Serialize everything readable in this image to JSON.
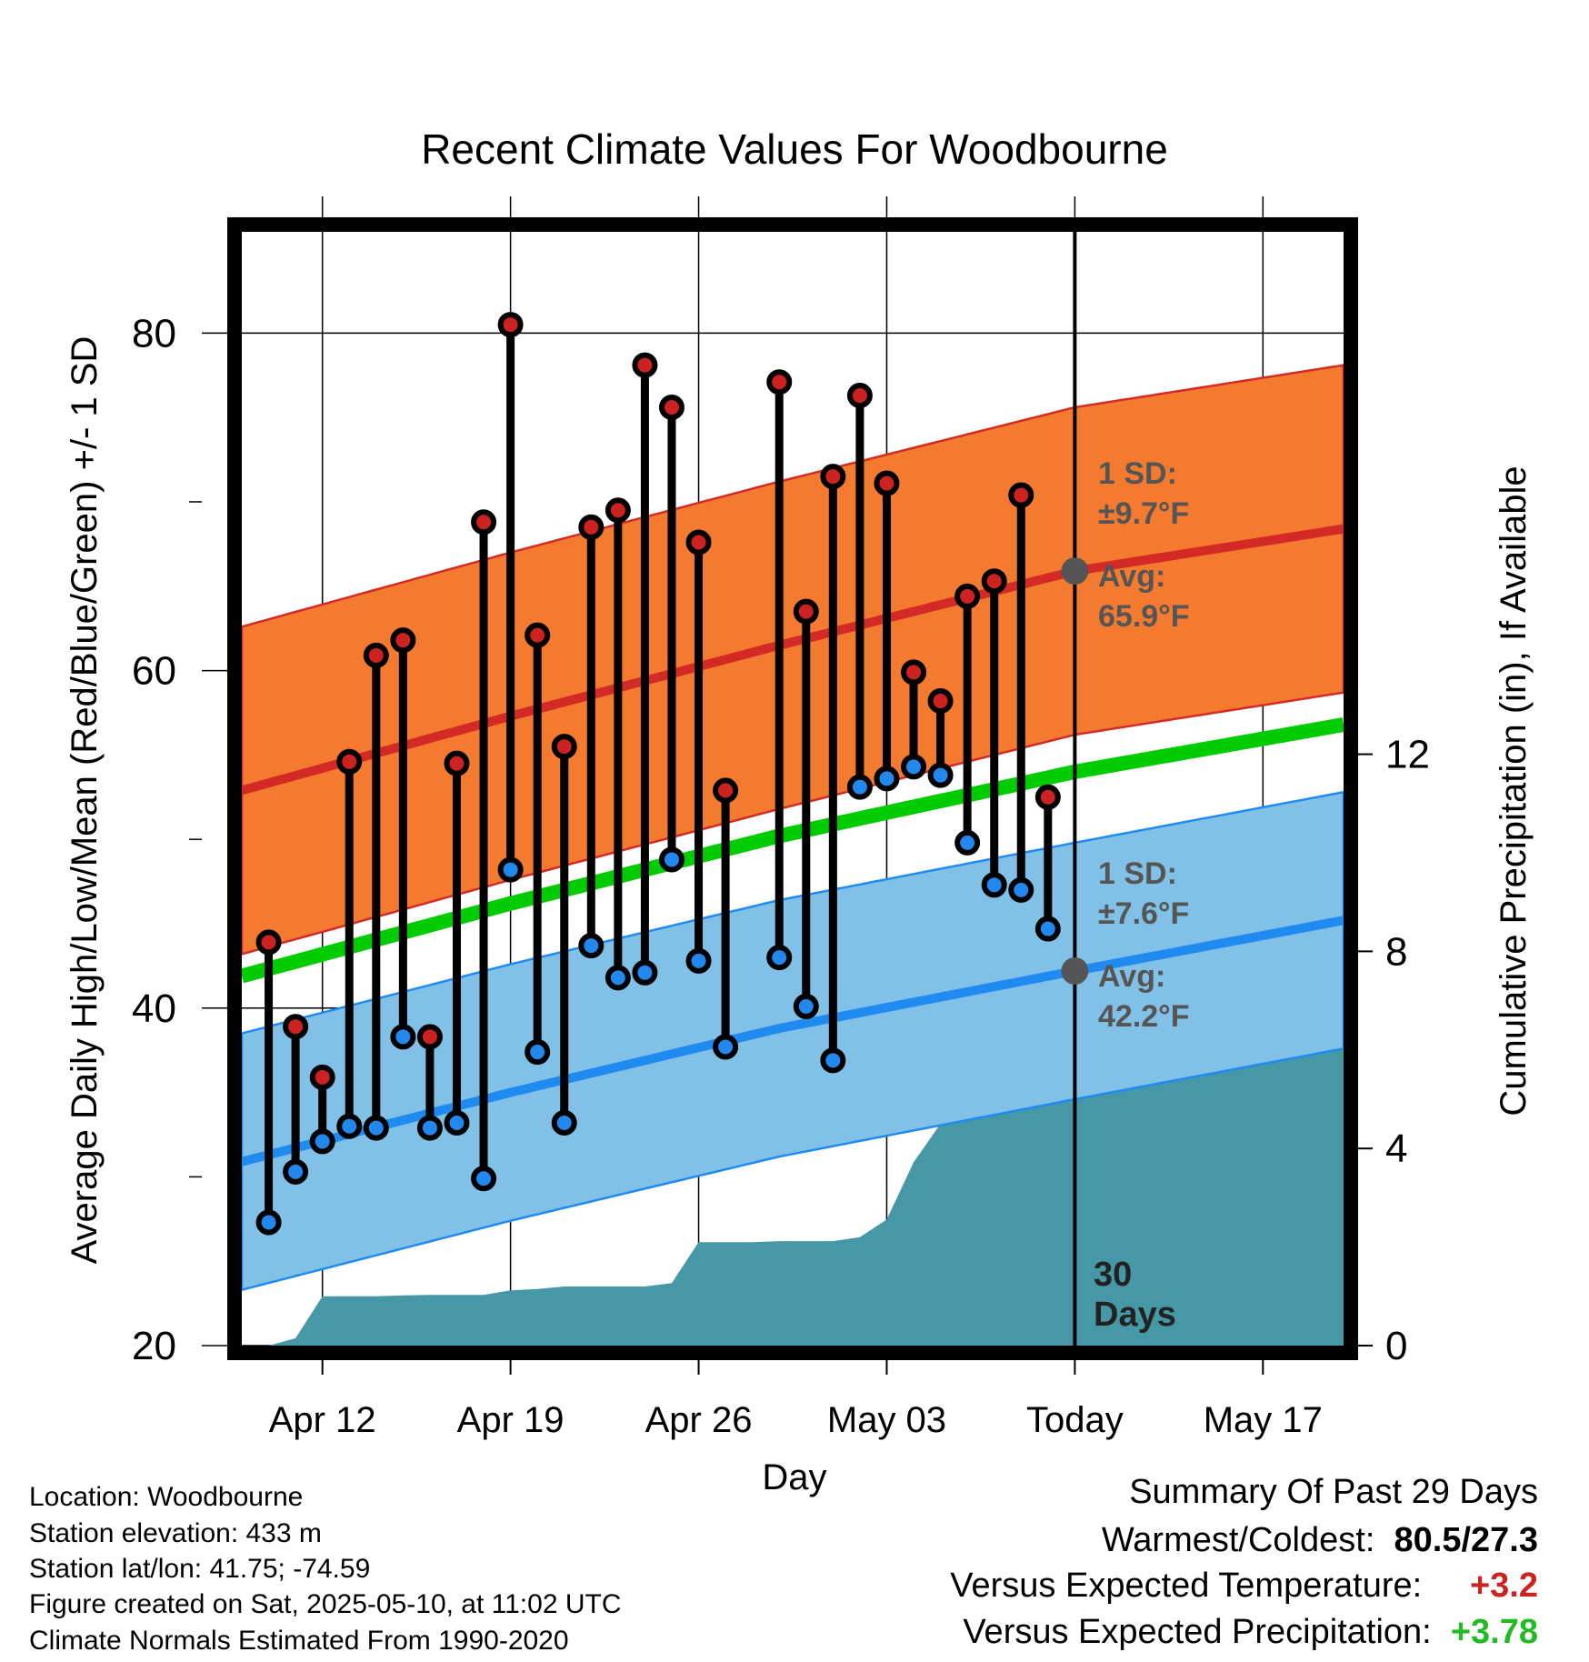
{
  "chart_data": {
    "type": "line",
    "title": "Recent Climate Values For Woodbourne",
    "xlabel": "Day",
    "ylabel": "Average Daily High/Low/Mean (Red/Blue/Green) +/- 1 SD",
    "y2label": "Cumulative Precipitation (in), If Available",
    "xlim": [
      "2025-04-09",
      "2025-05-20"
    ],
    "ylim": [
      20,
      86
    ],
    "y2lim": [
      0,
      22.6
    ],
    "xticks": [
      {
        "date": "2025-04-12",
        "label": "Apr 12"
      },
      {
        "date": "2025-04-19",
        "label": "Apr 19"
      },
      {
        "date": "2025-04-26",
        "label": "Apr 26"
      },
      {
        "date": "2025-05-03",
        "label": "May 03"
      },
      {
        "date": "2025-05-10",
        "label": "Today"
      },
      {
        "date": "2025-05-17",
        "label": "May 17"
      }
    ],
    "yticks": [
      20,
      40,
      60,
      80
    ],
    "y2ticks": [
      0,
      4,
      8,
      12
    ],
    "grid": true,
    "normals": {
      "x": [
        "2025-04-09",
        "2025-04-19",
        "2025-04-29",
        "2025-05-10",
        "2025-05-20"
      ],
      "avg_high": [
        52.9,
        57.3,
        61.5,
        65.9,
        68.4
      ],
      "high_sd": 9.7,
      "avg_low": [
        30.9,
        35.0,
        38.8,
        42.2,
        45.2
      ],
      "low_sd": 7.6,
      "avg_mean": [
        41.9,
        46.2,
        50.2,
        54.0,
        56.8
      ]
    },
    "daily": {
      "dates": [
        "2025-04-10",
        "2025-04-11",
        "2025-04-12",
        "2025-04-13",
        "2025-04-14",
        "2025-04-15",
        "2025-04-16",
        "2025-04-17",
        "2025-04-18",
        "2025-04-19",
        "2025-04-20",
        "2025-04-21",
        "2025-04-22",
        "2025-04-23",
        "2025-04-24",
        "2025-04-25",
        "2025-04-26",
        "2025-04-27",
        "2025-04-29",
        "2025-04-30",
        "2025-05-01",
        "2025-05-02",
        "2025-05-03",
        "2025-05-04",
        "2025-05-05",
        "2025-05-06",
        "2025-05-07",
        "2025-05-08",
        "2025-05-09"
      ],
      "highs": [
        43.9,
        38.9,
        35.9,
        54.6,
        60.9,
        61.8,
        38.3,
        54.5,
        68.8,
        80.5,
        62.1,
        55.5,
        68.5,
        69.5,
        78.1,
        75.6,
        67.6,
        52.9,
        77.1,
        63.5,
        71.5,
        76.3,
        71.1,
        59.9,
        58.2,
        64.4,
        65.3,
        70.4,
        52.5
      ],
      "lows": [
        27.3,
        30.3,
        32.1,
        33.0,
        32.9,
        38.3,
        32.9,
        33.2,
        29.9,
        48.2,
        37.4,
        33.2,
        43.7,
        41.8,
        42.1,
        48.8,
        42.8,
        37.7,
        43.0,
        40.1,
        36.9,
        53.1,
        53.6,
        54.3,
        53.8,
        49.8,
        47.3,
        47.0,
        44.7
      ]
    },
    "precip": {
      "dates": [
        "2025-04-09",
        "2025-04-10",
        "2025-04-11",
        "2025-04-12",
        "2025-04-13",
        "2025-04-14",
        "2025-04-15",
        "2025-04-16",
        "2025-04-17",
        "2025-04-18",
        "2025-04-19",
        "2025-04-20",
        "2025-04-21",
        "2025-04-22",
        "2025-04-23",
        "2025-04-24",
        "2025-04-25",
        "2025-04-26",
        "2025-04-27",
        "2025-04-28",
        "2025-04-29",
        "2025-04-30",
        "2025-05-01",
        "2025-05-02",
        "2025-05-03",
        "2025-05-04",
        "2025-05-05",
        "2025-05-06",
        "2025-05-07",
        "2025-05-08",
        "2025-05-09",
        "2025-05-10",
        "2025-05-20"
      ],
      "cumulative": [
        0.0,
        0.0,
        0.15,
        1.0,
        1.0,
        1.0,
        1.02,
        1.03,
        1.03,
        1.03,
        1.12,
        1.15,
        1.2,
        1.2,
        1.2,
        1.2,
        1.27,
        2.1,
        2.1,
        2.1,
        2.12,
        2.12,
        2.12,
        2.2,
        2.56,
        3.72,
        4.5,
        5.8,
        5.8,
        6.0,
        7.6,
        7.6,
        7.6
      ]
    },
    "annotations": {
      "high_sd_label": "1 SD:",
      "high_sd_value": "±9.7°F",
      "high_avg_label": "Avg:",
      "high_avg_value": "65.9°F",
      "low_sd_label": "1 SD:",
      "low_sd_value": "±7.6°F",
      "low_avg_label": "Avg:",
      "low_avg_value": "42.2°F",
      "window_line1": "30",
      "window_line2": "Days"
    },
    "colors": {
      "high_band": "#f47a30",
      "high_line": "#d42a26",
      "low_band": "#82c1e7",
      "low_line": "#1f8bf0",
      "mean_line": "#00cc00",
      "precip": "#4698a6",
      "high_point": "#cc2222",
      "low_point": "#2288ee",
      "annotation": "#555555"
    }
  },
  "info": {
    "location": "Location: Woodbourne",
    "elevation": "Station elevation: 433 m",
    "latlon": "Station lat/lon: 41.75; -74.59",
    "created": "Figure created on Sat, 2025-05-10, at 11:02 UTC",
    "normals": "Climate Normals Estimated From 1990-2020"
  },
  "summary": {
    "title": "Summary Of Past 29 Days",
    "warm_cold_label": "Warmest/Coldest:",
    "warm_cold_value": "80.5/27.3",
    "temp_label": "Versus Expected Temperature:",
    "temp_value": "+3.2",
    "temp_color": "#cc2222",
    "precip_label": "Versus Expected Precipitation:",
    "precip_value": "+3.78",
    "precip_color": "#22bb22"
  }
}
